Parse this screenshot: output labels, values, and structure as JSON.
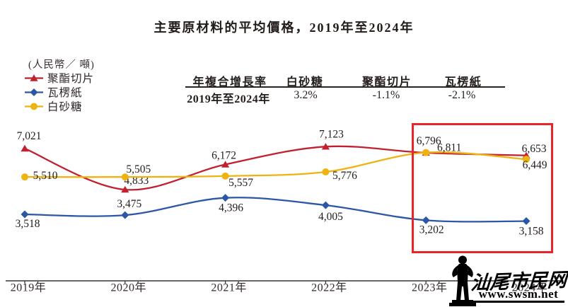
{
  "title": "主要原材料的平均價格，2019年至2024年",
  "unit_label": "(人民幣／ 噸)",
  "cagr_table": {
    "header": [
      "年複合增長率",
      "白砂糖",
      "聚酯切片",
      "瓦楞紙"
    ],
    "row": [
      "2019年至2024年",
      "3.2%",
      "-1.1%",
      "-2.1%"
    ]
  },
  "chart_data": {
    "type": "line",
    "x": [
      "2019年",
      "2020年",
      "2021年",
      "2022年",
      "2023年",
      "2024年"
    ],
    "ylim": [
      0,
      7500
    ],
    "grid": false,
    "legend_position": "top-left",
    "axis_color": "#3b3533",
    "series": [
      {
        "name": "聚酯切片",
        "color": "#c1202f",
        "marker": "triangle",
        "values": [
          7021,
          4833,
          6172,
          7123,
          6796,
          6653
        ],
        "labels": [
          "7,021",
          "4,833",
          "6,172",
          "7,123",
          "6,796",
          "6,653"
        ],
        "label_offsets": [
          [
            6,
            -18
          ],
          [
            16,
            -13
          ],
          [
            -2,
            -13
          ],
          [
            8,
            -18
          ],
          [
            4,
            -17
          ],
          [
            11,
            -10
          ]
        ]
      },
      {
        "name": "瓦楞紙",
        "color": "#2c57a5",
        "marker": "diamond",
        "values": [
          3518,
          3475,
          4396,
          4005,
          3202,
          3158
        ],
        "labels": [
          "3,518",
          "3,475",
          "4,396",
          "4,005",
          "3,202",
          "3,158"
        ],
        "label_offsets": [
          [
            4,
            13
          ],
          [
            6,
            -16
          ],
          [
            8,
            14
          ],
          [
            7,
            16
          ],
          [
            8,
            13
          ],
          [
            7,
            14
          ]
        ]
      },
      {
        "name": "白砂糖",
        "color": "#eeb211",
        "marker": "circle",
        "values": [
          5510,
          5505,
          5557,
          5776,
          6811,
          6449
        ],
        "labels": [
          "5,510",
          "5,505",
          "5,557",
          "5,776",
          "6,811",
          "6,449"
        ],
        "label_offsets": [
          [
            29,
            -2
          ],
          [
            19,
            -11
          ],
          [
            22,
            9
          ],
          [
            27,
            5
          ],
          [
            33,
            -7
          ],
          [
            12,
            8
          ]
        ]
      }
    ],
    "highlight": {
      "x_range": [
        "2023年",
        "2024年"
      ],
      "box_color": "#e9242b"
    }
  },
  "watermark": {
    "site_name": "汕尾市民网",
    "site_url": "www.swsm.net"
  }
}
